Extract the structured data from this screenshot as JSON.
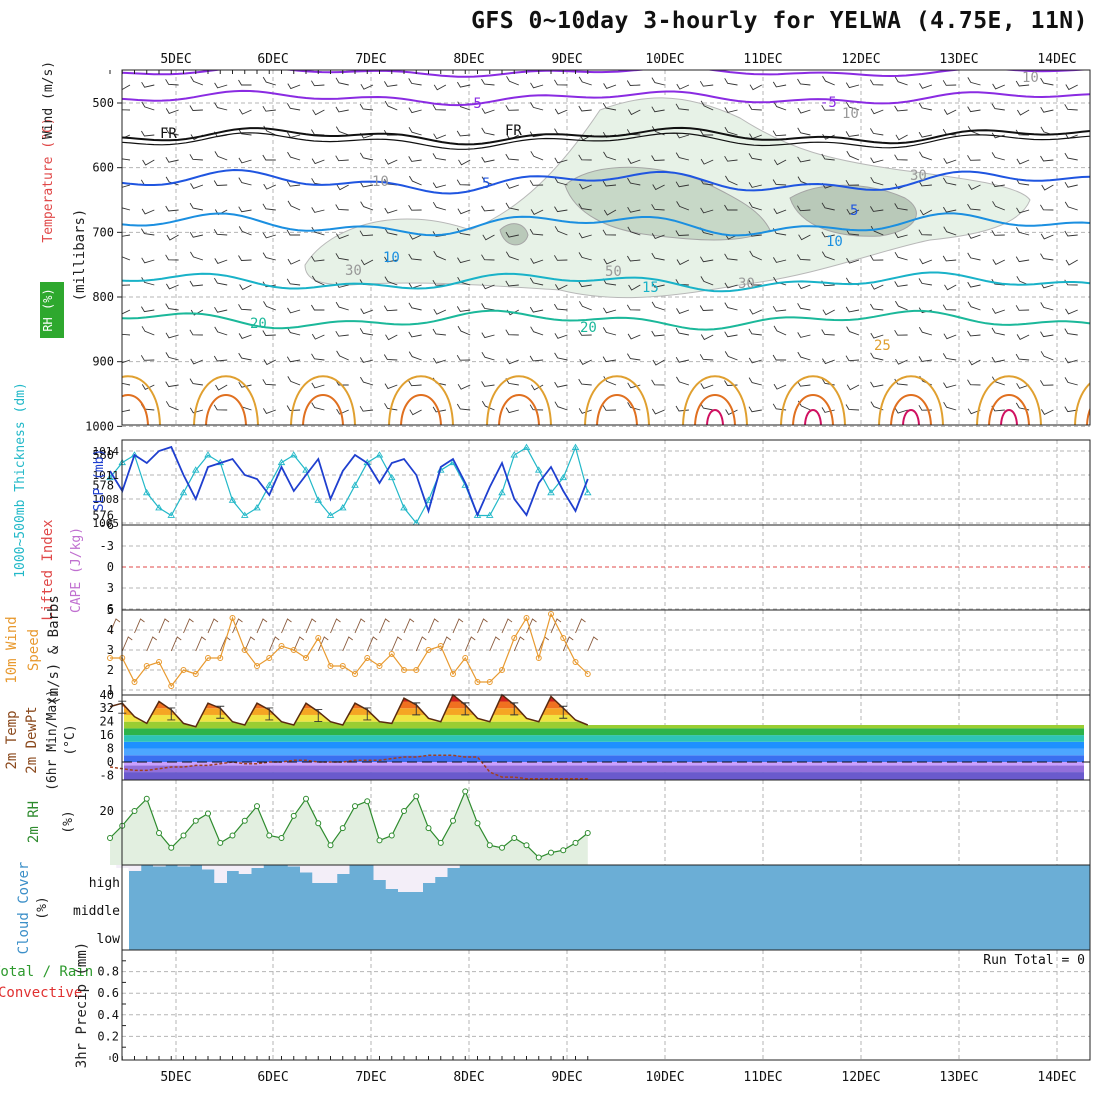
{
  "title": "GFS 0~10day 3-hourly for YELWA (4.75E, 11N)",
  "dates": [
    "5DEC",
    "6DEC",
    "7DEC",
    "8DEC",
    "9DEC",
    "10DEC",
    "11DEC",
    "12DEC",
    "13DEC",
    "14DEC"
  ],
  "run_total": "Run Total = 0",
  "panel_labels": {
    "rh": "RH (%)",
    "temperature": "Temperature (°C)",
    "wind": "Wind (m/s)",
    "millibars": "(millibars)",
    "thickness": "1000~500mb Thickness (dm)",
    "slp": "SLP (mb)",
    "lifted_index": "Lifted Index",
    "cape": "CAPE (J/kg)",
    "wind10m": "10m Wind",
    "wind10m_2": "Speed",
    "wind10m_3": "(m/s) & Barbs",
    "temp2m_1": "2m Temp",
    "temp2m_2": "2m DewPt",
    "temp2m_3": "(6hr Min/Max)",
    "temp2m_unit": "(°C)",
    "rh2m": "2m RH",
    "rh2m_unit": "(%)",
    "cloud": "Cloud Cover",
    "cloud_unit": "(%)",
    "precip_total": "Total / Rain",
    "precip_conv": "Convective",
    "precip": "3hr Precip (mm)"
  },
  "contour_labels": {
    "fr": "FR",
    "t_m5": "-5",
    "t_5": "5",
    "t_10": "10",
    "t_15": "15",
    "t_20": "20",
    "t_25": "25",
    "rh_10": "10",
    "rh_30": "30",
    "rh_50": "50"
  },
  "axes": {
    "pressure_ticks": [
      "500",
      "600",
      "700",
      "800",
      "900",
      "1000"
    ],
    "thickness_ticks": [
      "580",
      "578",
      "576"
    ],
    "slp_ticks": [
      "1014",
      "1011",
      "1008",
      "1005"
    ],
    "li_ticks": [
      "-6",
      "-3",
      "0",
      "3",
      "6"
    ],
    "wind_ticks": [
      "5",
      "4",
      "3",
      "2",
      "1"
    ],
    "temp_ticks": [
      "40",
      "32",
      "24",
      "16",
      "8",
      "0",
      "-8"
    ],
    "rh_ticks": [
      "20"
    ],
    "cloud_levels": [
      "high",
      "middle",
      "low"
    ],
    "precip_ticks": [
      "0.8",
      "0.6",
      "0.4",
      "0.2",
      "0"
    ]
  },
  "colors": {
    "slp": "#1f3fcf",
    "thickness": "#22b8c8",
    "wind": "#e89a30",
    "rh2m": "#2e8b2e",
    "cloud": "#6baed6",
    "cloud_gap": "#f3eef8",
    "temp_fill": "#7a3c1a",
    "freezing": "#000000"
  },
  "chart_data": [
    {
      "type": "line",
      "title": "SLP (mb) / 1000~500mb Thickness (dm)",
      "x": [
        0,
        1,
        2,
        3,
        4,
        5,
        6,
        7,
        8,
        9,
        10,
        11,
        12,
        13,
        14,
        15,
        16,
        17,
        18,
        19,
        20,
        21,
        22,
        23,
        24,
        25,
        26,
        27,
        28,
        29,
        30,
        31,
        32,
        33,
        34,
        35,
        36,
        37,
        38,
        39
      ],
      "series": [
        {
          "name": "SLP (mb)",
          "values": [
            1011.5,
            1009,
            1013.5,
            1012.5,
            1014,
            1014.5,
            1011,
            1008,
            1012,
            1012.5,
            1013,
            1011,
            1010.5,
            1008.5,
            1012,
            1009,
            1011,
            1013,
            1008,
            1011.5,
            1013.5,
            1012.5,
            1010,
            1012.5,
            1013,
            1011,
            1006.5,
            1012,
            1013,
            1010,
            1006,
            1009.5,
            1012.5,
            1008,
            1006,
            1010,
            1012,
            1009,
            1006.5,
            1010.5
          ],
          "ylim": [
            1005,
            1015
          ]
        },
        {
          "name": "Thickness (dm)",
          "values": [
            578.5,
            579.5,
            580,
            577.5,
            576.5,
            576,
            577.5,
            579,
            580,
            579.5,
            577,
            576,
            576.5,
            578,
            579.5,
            580,
            579,
            577,
            576,
            576.5,
            578,
            579.5,
            580,
            578.5,
            576.5,
            575.5,
            577,
            579,
            579.5,
            578,
            576,
            576,
            577.5,
            580,
            580.5,
            579,
            577.5,
            578.5,
            580.5,
            577.5
          ],
          "ylim": [
            575.5,
            580.8
          ]
        }
      ]
    },
    {
      "type": "line",
      "title": "10m Wind Speed (m/s)",
      "x": [
        0,
        1,
        2,
        3,
        4,
        5,
        6,
        7,
        8,
        9,
        10,
        11,
        12,
        13,
        14,
        15,
        16,
        17,
        18,
        19,
        20,
        21,
        22,
        23,
        24,
        25,
        26,
        27,
        28,
        29,
        30,
        31,
        32,
        33,
        34,
        35,
        36,
        37,
        38,
        39
      ],
      "values": [
        2.6,
        2.6,
        1.4,
        2.2,
        2.4,
        1.2,
        2,
        1.8,
        2.6,
        2.6,
        4.6,
        3,
        2.2,
        2.6,
        3.2,
        3,
        2.6,
        3.6,
        2.2,
        2.2,
        1.8,
        2.6,
        2.2,
        2.8,
        2,
        2,
        3,
        3.2,
        1.8,
        2.6,
        1.4,
        1.4,
        2,
        3.6,
        4.6,
        2.6,
        4.8,
        3.6,
        2.4,
        1.8
      ],
      "ylim": [
        1,
        5
      ]
    },
    {
      "type": "area",
      "title": "2m Temp (6hr Min/Max) (°C)",
      "x": [
        0,
        1,
        2,
        3,
        4,
        5,
        6,
        7,
        8,
        9,
        10,
        11,
        12,
        13,
        14,
        15,
        16,
        17,
        18,
        19,
        20,
        21,
        22,
        23,
        24,
        25,
        26,
        27,
        28,
        29,
        30,
        31,
        32,
        33,
        34,
        35,
        36,
        37,
        38,
        39
      ],
      "series": [
        {
          "name": "2m Temp",
          "values": [
            33,
            35,
            27,
            23,
            36,
            31,
            23,
            21,
            35,
            32,
            24,
            22,
            35,
            31,
            24,
            22,
            35,
            30,
            24,
            22,
            35,
            31,
            24,
            23,
            38,
            34,
            26,
            24,
            40,
            34,
            26,
            24,
            40,
            34,
            26,
            24,
            39,
            32,
            25,
            22
          ]
        },
        {
          "name": "2m DewPt",
          "values": [
            -3,
            -4,
            -5,
            -5,
            -4,
            -3,
            -3,
            -2,
            -2,
            -1,
            0,
            -1,
            -1,
            0,
            0,
            1,
            1,
            0,
            0,
            0,
            1,
            1,
            1,
            2,
            3,
            3,
            4,
            4,
            4,
            3,
            3,
            -6,
            -9,
            -9,
            -10,
            -10,
            -10,
            -10,
            -10,
            -10
          ]
        }
      ],
      "ylim": [
        -12,
        42
      ]
    },
    {
      "type": "area",
      "title": "2m RH (%)",
      "x": [
        0,
        1,
        2,
        3,
        4,
        5,
        6,
        7,
        8,
        9,
        10,
        11,
        12,
        13,
        14,
        15,
        16,
        17,
        18,
        19,
        20,
        21,
        22,
        23,
        24,
        25,
        26,
        27,
        28,
        29,
        30,
        31,
        32,
        33,
        34,
        35,
        36,
        37,
        38,
        39
      ],
      "values": [
        9,
        14,
        20,
        25,
        11,
        5,
        10,
        16,
        19,
        7,
        10,
        16,
        22,
        10,
        9,
        18,
        25,
        15,
        6,
        13,
        22,
        24,
        8,
        10,
        20,
        26,
        13,
        7,
        16,
        28,
        15,
        6,
        5,
        9,
        6,
        1,
        3,
        4,
        7,
        11
      ],
      "ylim": [
        0,
        35
      ]
    },
    {
      "type": "bar",
      "title": "Cloud Cover (%) high",
      "x": [
        0,
        1,
        2,
        3,
        4,
        5,
        6,
        7,
        8,
        9,
        10,
        11,
        12,
        13,
        14,
        15,
        16,
        17,
        18,
        19,
        20,
        21,
        22,
        23,
        24,
        25,
        26,
        27,
        28,
        29,
        30,
        31,
        32,
        33,
        34,
        35,
        36,
        37,
        38,
        39
      ],
      "values": [
        0,
        10,
        20,
        0,
        5,
        0,
        5,
        0,
        15,
        60,
        20,
        30,
        10,
        0,
        0,
        5,
        25,
        60,
        60,
        30,
        0,
        0,
        50,
        80,
        90,
        90,
        60,
        40,
        10,
        0,
        0,
        0,
        0,
        0,
        0,
        0,
        0,
        0,
        0,
        0
      ],
      "ylim": [
        0,
        100
      ]
    },
    {
      "type": "bar",
      "title": "3hr Precip (mm)",
      "x": [
        0,
        1,
        2,
        3,
        4,
        5,
        6,
        7,
        8,
        9,
        10,
        11,
        12,
        13,
        14,
        15,
        16,
        17,
        18,
        19,
        20,
        21,
        22,
        23,
        24,
        25,
        26,
        27,
        28,
        29,
        30,
        31,
        32,
        33,
        34,
        35,
        36,
        37,
        38,
        39
      ],
      "values": [
        0,
        0,
        0,
        0,
        0,
        0,
        0,
        0,
        0,
        0,
        0,
        0,
        0,
        0,
        0,
        0,
        0,
        0,
        0,
        0,
        0,
        0,
        0,
        0,
        0,
        0,
        0,
        0,
        0,
        0,
        0,
        0,
        0,
        0,
        0,
        0,
        0,
        0,
        0,
        0
      ],
      "ylim": [
        0,
        1
      ]
    }
  ]
}
